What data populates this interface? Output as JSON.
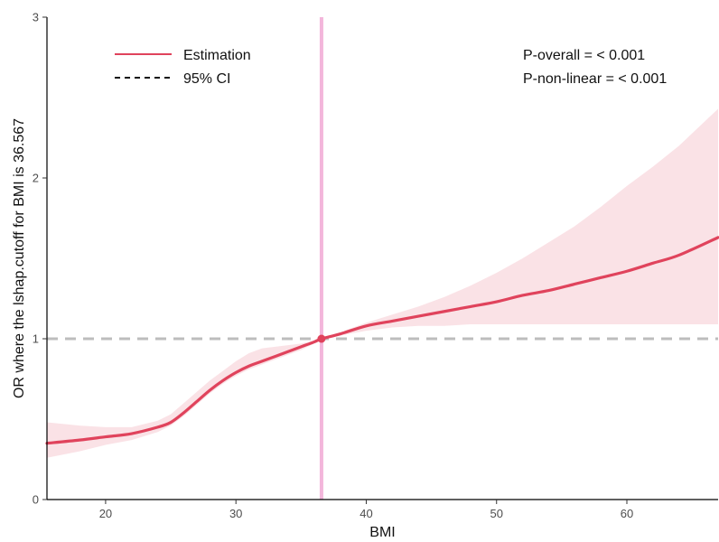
{
  "chart_data": {
    "type": "line",
    "title": "",
    "xlabel": "BMI",
    "ylabel": "OR where the lshap.cutoff for BMI is 36.567",
    "xlim": [
      15.5,
      67
    ],
    "ylim": [
      0,
      3
    ],
    "xticks": [
      20,
      30,
      40,
      50,
      60
    ],
    "yticks": [
      0,
      1,
      2,
      3
    ],
    "grid": false,
    "legend_position": "top-left",
    "legend": [
      {
        "label": "Estimation",
        "style": "solid",
        "color": "#e0435c"
      },
      {
        "label": "95% CI",
        "style": "dashed",
        "color": "#111111"
      }
    ],
    "annotations": [
      "P-overall = < 0.001",
      "P-non-linear = < 0.001"
    ],
    "reference_line_y": 1,
    "reference_line_x": 36.567,
    "highlight_point": {
      "x": 36.567,
      "y": 1.0
    },
    "colors": {
      "estimate": "#e0435c",
      "ci_fill": "#f9dde2",
      "reference_horizontal": "#bdbdbd",
      "reference_vertical": "#f3b6db"
    },
    "series": [
      {
        "name": "Estimation",
        "x": [
          15.5,
          18,
          20,
          22,
          24,
          25,
          26,
          27,
          28,
          29,
          30,
          31,
          32,
          33,
          34,
          35,
          36,
          36.567,
          38,
          40,
          42,
          44,
          46,
          48,
          50,
          52,
          54,
          56,
          58,
          60,
          62,
          64,
          67
        ],
        "y": [
          0.35,
          0.37,
          0.39,
          0.41,
          0.45,
          0.48,
          0.54,
          0.61,
          0.68,
          0.74,
          0.79,
          0.83,
          0.86,
          0.89,
          0.92,
          0.95,
          0.98,
          1.0,
          1.03,
          1.08,
          1.11,
          1.14,
          1.17,
          1.2,
          1.23,
          1.27,
          1.3,
          1.34,
          1.38,
          1.42,
          1.47,
          1.52,
          1.63
        ]
      }
    ],
    "ci": {
      "x": [
        15.5,
        18,
        20,
        22,
        24,
        25,
        26,
        27,
        28,
        29,
        30,
        31,
        32,
        33,
        34,
        35,
        36,
        36.567,
        38,
        40,
        42,
        44,
        46,
        48,
        50,
        52,
        54,
        56,
        58,
        60,
        62,
        64,
        67
      ],
      "lower": [
        0.26,
        0.3,
        0.34,
        0.37,
        0.42,
        0.46,
        0.52,
        0.59,
        0.66,
        0.72,
        0.77,
        0.81,
        0.84,
        0.87,
        0.9,
        0.93,
        0.97,
        1.0,
        1.02,
        1.05,
        1.07,
        1.08,
        1.08,
        1.09,
        1.09,
        1.09,
        1.09,
        1.09,
        1.09,
        1.09,
        1.09,
        1.09,
        1.09
      ],
      "upper": [
        0.48,
        0.46,
        0.45,
        0.45,
        0.49,
        0.53,
        0.6,
        0.67,
        0.74,
        0.8,
        0.86,
        0.91,
        0.94,
        0.95,
        0.96,
        0.97,
        0.99,
        1.0,
        1.04,
        1.1,
        1.15,
        1.2,
        1.26,
        1.33,
        1.41,
        1.5,
        1.6,
        1.7,
        1.82,
        1.95,
        2.07,
        2.2,
        2.43
      ]
    }
  }
}
